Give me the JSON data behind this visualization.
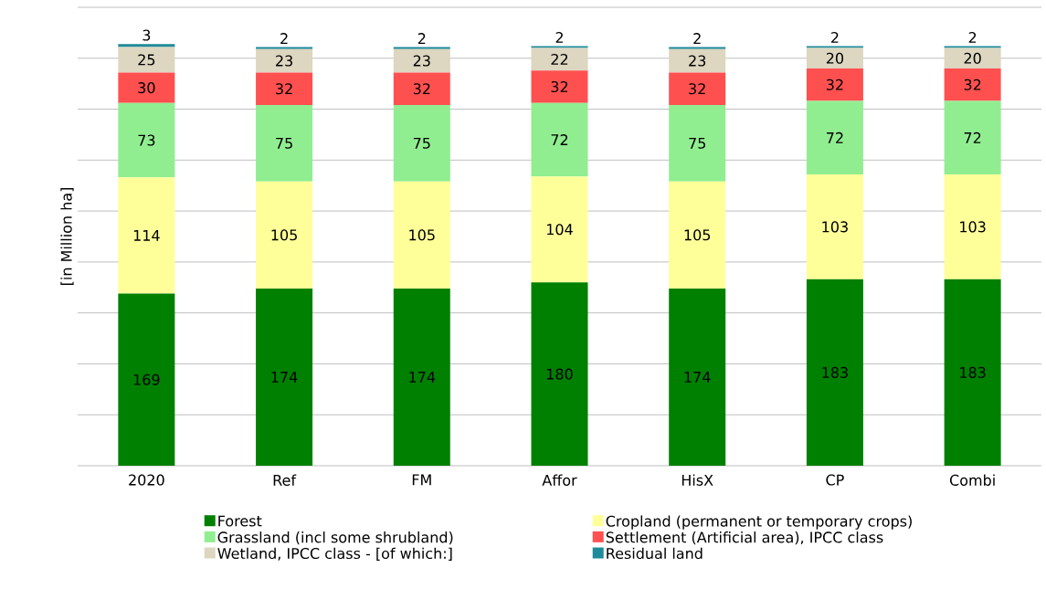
{
  "chart_data": {
    "type": "bar",
    "stacked": true,
    "ylabel": "[in Million ha]",
    "categories": [
      "2020",
      "Ref",
      "FM",
      "Affor",
      "HisX",
      "CP",
      "Combi"
    ],
    "series": [
      {
        "name": "Forest",
        "color": "#008000",
        "values": [
          169,
          174,
          174,
          180,
          174,
          183,
          183
        ]
      },
      {
        "name": "Cropland (permanent or temporary crops)",
        "color": "#ffff99",
        "values": [
          114,
          105,
          105,
          104,
          105,
          103,
          103
        ]
      },
      {
        "name": "Grassland (incl some shrubland)",
        "color": "#90ee90",
        "values": [
          73,
          75,
          75,
          72,
          75,
          72,
          72
        ]
      },
      {
        "name": "Settlement (Artificial area), IPCC class",
        "color": "#ff5050",
        "values": [
          30,
          32,
          32,
          32,
          32,
          32,
          32
        ]
      },
      {
        "name": "Wetland, IPCC class - [of which:]",
        "color": "#ddd6c0",
        "values": [
          25,
          23,
          23,
          22,
          23,
          20,
          20
        ]
      },
      {
        "name": "Residual land",
        "color": "#1f8a99",
        "values": [
          3,
          2,
          2,
          2,
          2,
          2,
          2
        ]
      }
    ],
    "ylim": [
      0,
      450
    ],
    "yticks": [
      {
        "value": 0,
        "label": null
      },
      {
        "value": 50,
        "label": null
      },
      {
        "value": 100,
        "label": null
      },
      {
        "value": 150,
        "label": null
      },
      {
        "value": 200,
        "label": null
      },
      {
        "value": 250,
        "label": null
      },
      {
        "value": 300,
        "label": null
      },
      {
        "value": 350,
        "label": null
      },
      {
        "value": 400,
        "label": null
      },
      {
        "value": 450,
        "label": null
      }
    ],
    "tick_labels": "x",
    "grid": "y",
    "legend": "bottom",
    "data_labels": true
  }
}
